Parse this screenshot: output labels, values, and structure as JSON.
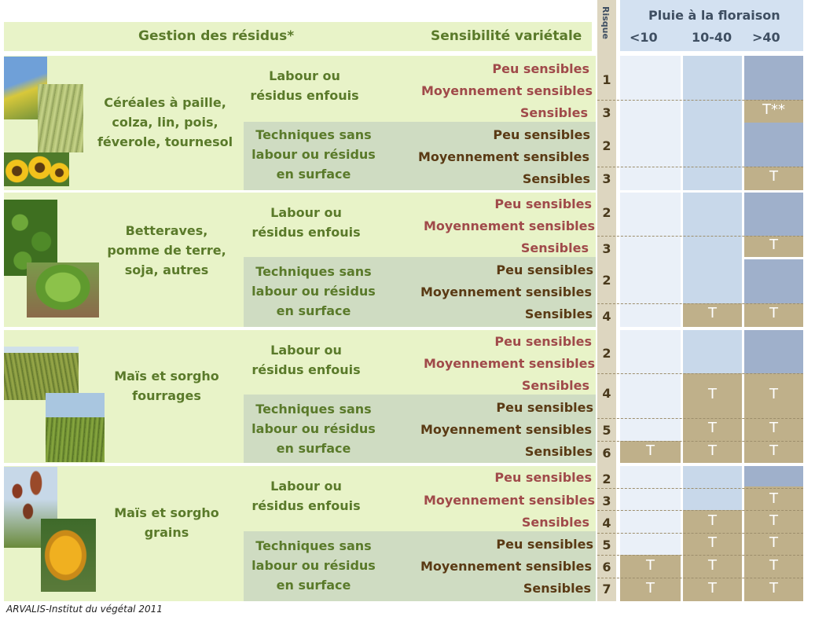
{
  "header": {
    "residue_title": "Gestion des résidus*",
    "varietal_title": "Sensibilité variétale",
    "risk_label": "Risque",
    "rain_title": "Pluie à la floraison",
    "rain_cols": [
      "<10",
      "10-40",
      ">40"
    ]
  },
  "groups": [
    {
      "crop": [
        "Céréales à paille,",
        "colza, lin, pois,",
        "féverole, tournesol"
      ],
      "blocks": [
        {
          "technique": [
            "Labour ou",
            "résidus enfouis"
          ],
          "sens": [
            "Peu sensibles",
            "Moyennement sensibles",
            "Sensibles"
          ],
          "risks": [
            "1",
            "3"
          ]
        },
        {
          "technique": [
            "Techniques sans",
            "labour ou résidus",
            "en surface"
          ],
          "sens": [
            "Peu sensibles",
            "Moyennement sensibles",
            "Sensibles"
          ],
          "risks": [
            "2",
            "3"
          ]
        }
      ]
    },
    {
      "crop": [
        "Betteraves,",
        "pomme de terre,",
        "soja, autres"
      ],
      "blocks": [
        {
          "technique": [
            "Labour ou",
            "résidus enfouis"
          ],
          "sens": [
            "Peu sensibles",
            "Moyennement sensibles",
            "Sensibles"
          ],
          "risks": [
            "2",
            "3"
          ]
        },
        {
          "technique": [
            "Techniques sans",
            "labour ou résidus",
            "en surface"
          ],
          "sens": [
            "Peu sensibles",
            "Moyennement sensibles",
            "Sensibles"
          ],
          "risks": [
            "2",
            "4"
          ]
        }
      ]
    },
    {
      "crop": [
        "Maïs et sorgho",
        "fourrages"
      ],
      "blocks": [
        {
          "technique": [
            "Labour ou",
            "résidus enfouis"
          ],
          "sens": [
            "Peu sensibles",
            "Moyennement sensibles",
            "Sensibles"
          ],
          "risks": [
            "2",
            "4"
          ]
        },
        {
          "technique": [
            "Techniques sans",
            "labour ou résidus",
            "en surface"
          ],
          "sens": [
            "Peu sensibles",
            "Moyennement sensibles",
            "Sensibles"
          ],
          "risks": [
            "5",
            "6"
          ]
        }
      ]
    },
    {
      "crop": [
        "Maïs et sorgho",
        "grains"
      ],
      "blocks": [
        {
          "technique": [
            "Labour ou",
            "résidus enfouis"
          ],
          "sens": [
            "Peu sensibles",
            "Moyennement sensibles",
            "Sensibles"
          ],
          "risks": [
            "2",
            "3",
            "4"
          ]
        },
        {
          "technique": [
            "Techniques sans",
            "labour ou résidus",
            "en surface"
          ],
          "sens": [
            "Peu sensibles",
            "Moyennement sensibles",
            "Sensibles"
          ],
          "risks": [
            "5",
            "6",
            "7"
          ]
        }
      ]
    }
  ],
  "marks": {
    "t": "T",
    "t_double_star": "T**"
  },
  "footer": {
    "credit": "ARVALIS-Institut du végétal 2011"
  },
  "colors": {
    "header_green": "#e8f3c8",
    "row_grey_green": "#cfdcc2",
    "rain_low": "#eaf0f8",
    "rain_mid": "#c8d8ea",
    "rain_high": "#9fb0cb",
    "treatment": "#bfb08a",
    "text_green": "#5a7a2a",
    "text_red": "#a04a4a",
    "text_brown": "#5a3a14"
  }
}
